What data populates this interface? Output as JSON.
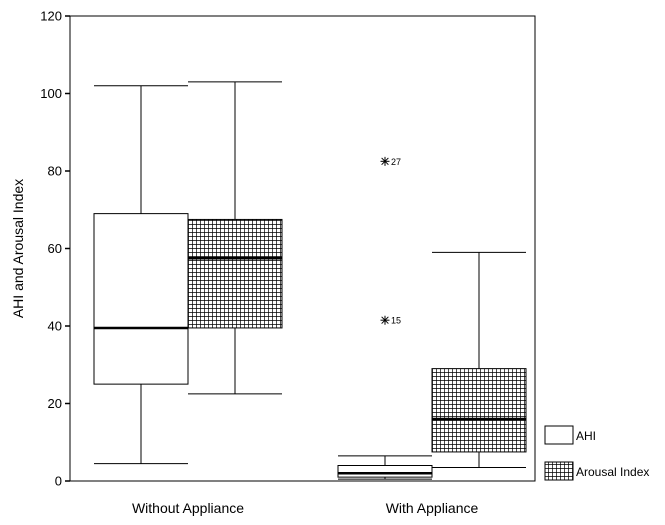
{
  "chart_data": {
    "type": "boxplot",
    "ylabel": "AHI and Arousal Index",
    "ylim": [
      0,
      120
    ],
    "yticks": [
      0,
      20,
      40,
      60,
      80,
      100,
      120
    ],
    "categories": [
      "Without Appliance",
      "With Appliance"
    ],
    "series": [
      {
        "name": "AHI",
        "pattern": "none",
        "boxes": [
          {
            "category": "Without Appliance",
            "min": 4.5,
            "q1": 25,
            "median": 39.5,
            "q3": 69,
            "max": 102
          },
          {
            "category": "With Appliance",
            "min": 0.5,
            "q1": 1,
            "median": 2,
            "q3": 4,
            "max": 6.5
          }
        ]
      },
      {
        "name": "Arousal Index",
        "pattern": "grid",
        "boxes": [
          {
            "category": "Without Appliance",
            "min": 22.5,
            "q1": 39.5,
            "median": 57.5,
            "q3": 67.5,
            "max": 103
          },
          {
            "category": "With Appliance",
            "min": 3.5,
            "q1": 7.5,
            "median": 16,
            "q3": 29,
            "max": 59
          }
        ]
      }
    ],
    "outliers": [
      {
        "series": "AHI",
        "category": "With Appliance",
        "value": 82.5,
        "label": "27"
      },
      {
        "series": "AHI",
        "category": "With Appliance",
        "value": 41.5,
        "label": "15"
      }
    ],
    "legend": {
      "position": "bottom-right",
      "entries": [
        "AHI",
        "Arousal Index"
      ]
    },
    "colors": {
      "box_fill": "#ffffff",
      "grid_line": "#000000",
      "stroke": "#000000"
    }
  }
}
